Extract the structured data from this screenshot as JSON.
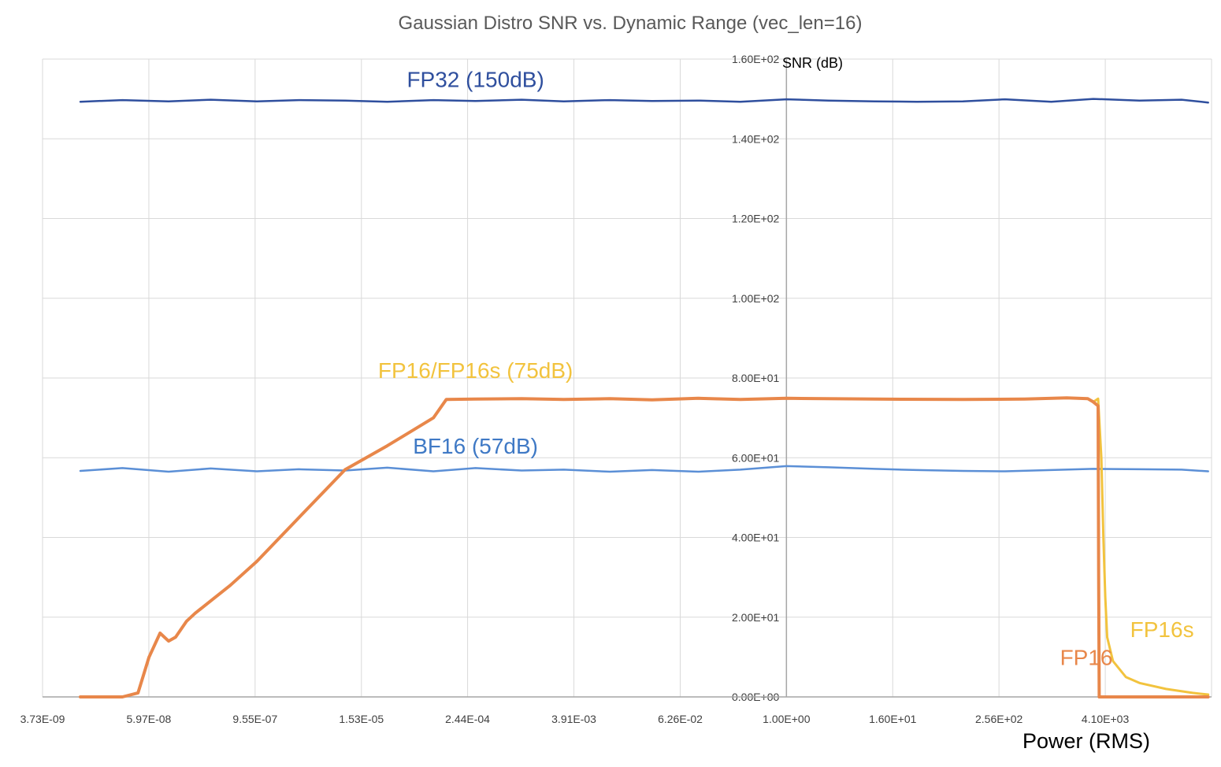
{
  "chart_data": {
    "type": "line",
    "title": "Gaussian Distro SNR vs. Dynamic Range (vec_len=16)",
    "xlabel": "Power (RMS)",
    "ylabel": "SNR (dB)",
    "x_scale": "log",
    "x_ticks": [
      "3.73E-09",
      "5.97E-08",
      "9.55E-07",
      "1.53E-05",
      "2.44E-04",
      "3.91E-03",
      "6.26E-02",
      "1.00E+00",
      "1.60E+01",
      "2.56E+02",
      "4.10E+03"
    ],
    "x_tick_values": [
      3.73e-09,
      5.97e-08,
      9.55e-07,
      1.53e-05,
      0.000244,
      0.00391,
      0.0626,
      1,
      16,
      256,
      4096
    ],
    "y_ticks": [
      "0.00E+00",
      "2.00E+01",
      "4.00E+01",
      "6.00E+01",
      "8.00E+01",
      "1.00E+02",
      "1.20E+02",
      "1.40E+02",
      "1.60E+02"
    ],
    "ylim": [
      0,
      160
    ],
    "xlim": [
      3.73e-09,
      65536
    ],
    "grid": true,
    "legend": "none",
    "series": [
      {
        "name": "FP32",
        "color": "#2F4F9E",
        "x": [
          1e-08,
          3e-08,
          1e-07,
          3e-07,
          1e-06,
          3e-06,
          1e-05,
          3e-05,
          0.0001,
          0.0003,
          0.001,
          0.003,
          0.01,
          0.03,
          0.1,
          0.3,
          1,
          3,
          10,
          30,
          100,
          300,
          1000,
          3000,
          10000,
          30000,
          60000
        ],
        "y": [
          149.3,
          149.7,
          149.4,
          149.8,
          149.4,
          149.7,
          149.6,
          149.3,
          149.7,
          149.5,
          149.8,
          149.4,
          149.7,
          149.5,
          149.6,
          149.3,
          149.9,
          149.6,
          149.4,
          149.3,
          149.4,
          149.9,
          149.3,
          150.0,
          149.6,
          149.8,
          149.1
        ]
      },
      {
        "name": "BF16",
        "color": "#5B8FD6",
        "x": [
          1e-08,
          3e-08,
          1e-07,
          3e-07,
          1e-06,
          3e-06,
          1e-05,
          3e-05,
          0.0001,
          0.0003,
          0.001,
          0.003,
          0.01,
          0.03,
          0.1,
          0.3,
          1,
          3,
          10,
          30,
          100,
          300,
          1000,
          3000,
          10000,
          30000,
          60000
        ],
        "y": [
          56.7,
          57.4,
          56.5,
          57.3,
          56.6,
          57.1,
          56.8,
          57.5,
          56.6,
          57.4,
          56.8,
          57.0,
          56.5,
          56.9,
          56.5,
          57.0,
          57.9,
          57.6,
          57.2,
          56.9,
          56.7,
          56.6,
          56.9,
          57.2,
          57.1,
          57.0,
          56.6
        ]
      },
      {
        "name": "FP16s",
        "color": "#F2C33E",
        "x": [
          1e-08,
          3e-08,
          4.5e-08,
          6e-08,
          8e-08,
          1e-07,
          1.2e-07,
          1.6e-07,
          2e-07,
          5e-07,
          1e-06,
          3e-06,
          1e-05,
          3e-05,
          0.0001,
          0.00014,
          0.0003,
          0.001,
          0.003,
          0.01,
          0.03,
          0.1,
          0.3,
          1,
          10,
          100,
          500,
          1500,
          2600,
          3000,
          3400,
          3700,
          3900,
          4100,
          4300,
          5000,
          7000,
          10000,
          20000,
          40000,
          60000
        ],
        "y": [
          0,
          0,
          1,
          10,
          16,
          14,
          15,
          19,
          21,
          28,
          34,
          45,
          57,
          63,
          70,
          74.6,
          74.7,
          74.8,
          74.6,
          74.8,
          74.5,
          74.9,
          74.6,
          74.9,
          74.7,
          74.6,
          74.7,
          75.0,
          74.8,
          74.0,
          74.8,
          60,
          40,
          25,
          15,
          9,
          5,
          3.5,
          2,
          1,
          0.6
        ]
      },
      {
        "name": "FP16",
        "color": "#E8874A",
        "x": [
          1e-08,
          3e-08,
          4.5e-08,
          6e-08,
          8e-08,
          1e-07,
          1.2e-07,
          1.6e-07,
          2e-07,
          5e-07,
          1e-06,
          3e-06,
          1e-05,
          3e-05,
          0.0001,
          0.00014,
          0.0003,
          0.001,
          0.003,
          0.01,
          0.03,
          0.1,
          0.3,
          1,
          10,
          100,
          500,
          1500,
          2600,
          3000,
          3400,
          3450,
          3500,
          10000,
          60000
        ],
        "y": [
          0,
          0,
          1,
          10,
          16,
          14,
          15,
          19,
          21,
          28,
          34,
          45,
          57,
          63,
          70,
          74.6,
          74.7,
          74.8,
          74.6,
          74.8,
          74.5,
          74.9,
          74.6,
          74.9,
          74.7,
          74.6,
          74.7,
          75.0,
          74.8,
          74.0,
          73,
          30,
          0,
          0,
          0
        ]
      }
    ],
    "annotations": [
      {
        "text": "FP32 (150dB)",
        "x": 0.0003,
        "y": 153,
        "color": "#2F4F9E"
      },
      {
        "text": "FP16/FP16s (75dB)",
        "x": 0.0003,
        "y": 80,
        "color": "#F2C33E"
      },
      {
        "text": "BF16 (57dB)",
        "x": 0.0003,
        "y": 61,
        "color": "#3F79C5"
      },
      {
        "text": "FP16",
        "x": 2500,
        "y": 8,
        "color": "#E8874A"
      },
      {
        "text": "FP16s",
        "x": 18000,
        "y": 15,
        "color": "#F2C33E"
      }
    ]
  }
}
